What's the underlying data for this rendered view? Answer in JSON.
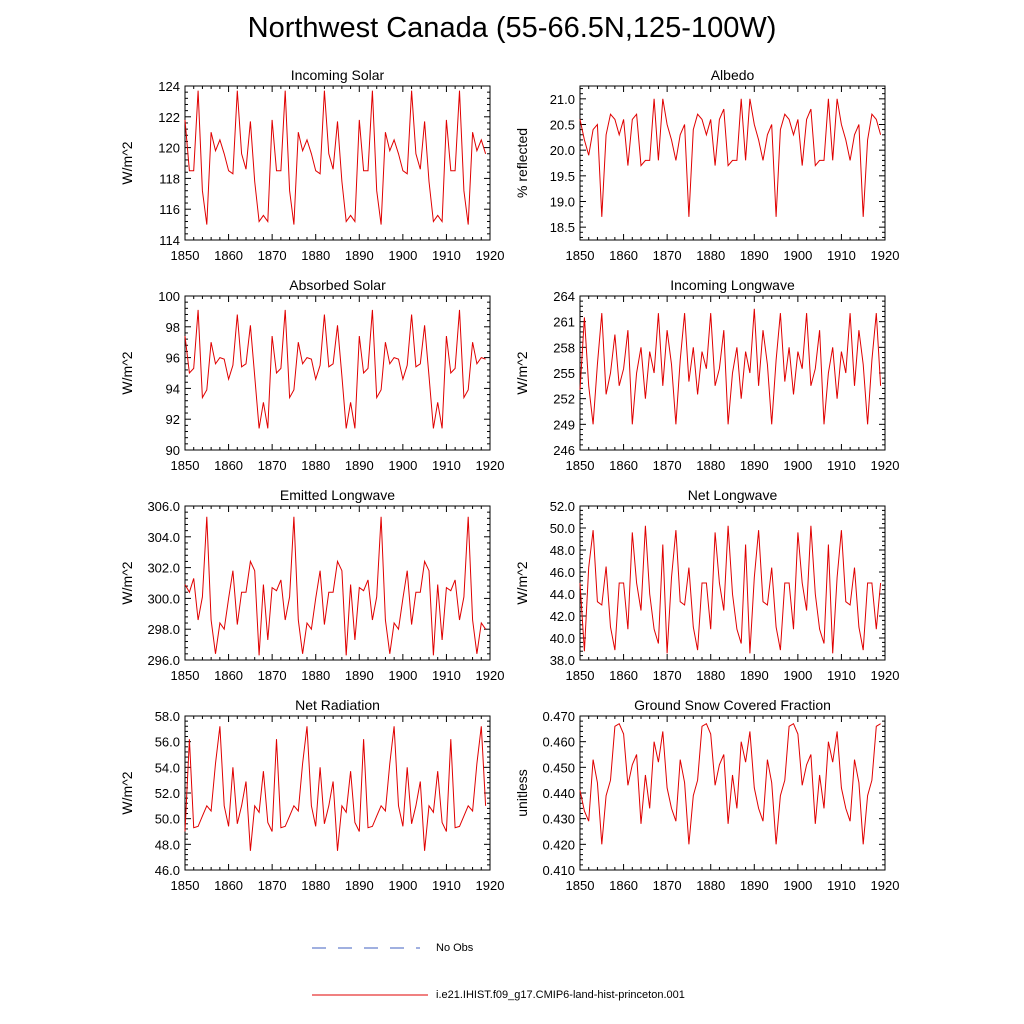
{
  "figure": {
    "title": "Northwest Canada (55-66.5N,125-100W)",
    "legend": [
      {
        "label": "No Obs",
        "color": "#4060c0",
        "style": "dashed"
      },
      {
        "label": "i.e21.IHIST.f09_g17.CMIP6-land-hist-princeton.001",
        "color": "#e00000",
        "style": "solid"
      }
    ]
  },
  "chart_data": [
    {
      "type": "line",
      "title": "Incoming Solar",
      "ylabel": "W/m^2",
      "xlim": [
        1850,
        1920
      ],
      "ylim": [
        114,
        124
      ],
      "xticks": [
        "1850",
        "1860",
        "1870",
        "1880",
        "1890",
        "1900",
        "1910",
        "1920"
      ],
      "yticks": [
        "114",
        "116",
        "118",
        "120",
        "122",
        "124"
      ],
      "x_start": 1850,
      "color": "#e00000",
      "values": [
        121.8,
        118.5,
        118.5,
        123.7,
        117.2,
        115.0,
        121.0,
        119.8,
        120.5,
        119.6,
        118.5,
        118.3,
        123.7,
        119.6,
        118.6,
        121.7,
        117.8,
        115.2,
        115.6,
        115.2,
        121.8,
        118.5,
        118.5,
        123.7,
        117.2,
        115.0,
        121.0,
        119.8,
        120.5,
        119.6,
        118.5,
        118.3,
        123.7,
        119.6,
        118.6,
        121.7,
        117.8,
        115.2,
        115.6,
        115.2,
        121.8,
        118.5,
        118.5,
        123.7,
        117.2,
        115.0,
        121.0,
        119.8,
        120.5,
        119.6,
        118.5,
        118.3,
        123.7,
        119.6,
        118.6,
        121.7,
        117.8,
        115.2,
        115.6,
        115.2,
        121.8,
        118.5,
        118.5,
        123.7,
        117.2,
        115.0,
        121.0,
        119.8,
        120.5,
        119.6
      ]
    },
    {
      "type": "line",
      "title": "Albedo",
      "ylabel": "% reflected",
      "xlim": [
        1850,
        1920
      ],
      "ylim": [
        18.25,
        21.25
      ],
      "xticks": [
        "1850",
        "1860",
        "1870",
        "1880",
        "1890",
        "1900",
        "1910",
        "1920"
      ],
      "yticks": [
        "18.5",
        "19.0",
        "19.5",
        "20.0",
        "20.5",
        "21.0"
      ],
      "x_start": 1850,
      "color": "#e00000",
      "values": [
        20.6,
        20.2,
        19.9,
        20.4,
        20.5,
        18.7,
        20.3,
        20.7,
        20.6,
        20.3,
        20.6,
        19.7,
        20.6,
        20.7,
        19.7,
        19.8,
        19.8,
        21.0,
        19.8,
        21.0,
        20.5,
        20.2,
        19.8,
        20.3,
        20.5,
        18.7,
        20.4,
        20.7,
        20.6,
        20.3,
        20.6,
        19.7,
        20.6,
        20.8,
        19.7,
        19.8,
        19.8,
        21.0,
        19.8,
        21.0,
        20.5,
        20.2,
        19.8,
        20.3,
        20.5,
        18.7,
        20.4,
        20.7,
        20.6,
        20.3,
        20.6,
        19.7,
        20.6,
        20.8,
        19.7,
        19.8,
        19.8,
        21.0,
        19.8,
        21.0,
        20.5,
        20.2,
        19.8,
        20.3,
        20.5,
        18.7,
        20.2,
        20.7,
        20.6,
        20.3
      ]
    },
    {
      "type": "line",
      "title": "Absorbed Solar",
      "ylabel": "W/m^2",
      "xlim": [
        1850,
        1920
      ],
      "ylim": [
        90,
        100
      ],
      "xticks": [
        "1850",
        "1860",
        "1870",
        "1880",
        "1890",
        "1900",
        "1910",
        "1920"
      ],
      "yticks": [
        "90",
        "92",
        "94",
        "96",
        "98",
        "100"
      ],
      "x_start": 1850,
      "color": "#e00000",
      "values": [
        97.4,
        95.0,
        95.3,
        99.1,
        93.4,
        93.9,
        97.0,
        95.6,
        96.0,
        95.9,
        94.6,
        95.5,
        98.8,
        95.4,
        95.6,
        98.1,
        94.8,
        91.4,
        93.1,
        91.4,
        97.4,
        95.0,
        95.3,
        99.1,
        93.4,
        93.9,
        97.0,
        95.6,
        96.0,
        95.9,
        94.6,
        95.5,
        98.8,
        95.4,
        95.6,
        98.1,
        94.8,
        91.4,
        93.1,
        91.4,
        97.4,
        95.0,
        95.3,
        99.1,
        93.4,
        93.9,
        97.0,
        95.6,
        96.0,
        95.9,
        94.6,
        95.5,
        98.8,
        95.4,
        95.6,
        98.1,
        94.8,
        91.4,
        93.1,
        91.4,
        97.4,
        95.0,
        95.3,
        99.1,
        93.4,
        93.9,
        97.0,
        95.6,
        96.0,
        95.9
      ]
    },
    {
      "type": "line",
      "title": "Incoming Longwave",
      "ylabel": "W/m^2",
      "xlim": [
        1850,
        1920
      ],
      "ylim": [
        246,
        264
      ],
      "xticks": [
        "1850",
        "1860",
        "1870",
        "1880",
        "1890",
        "1900",
        "1910",
        "1920"
      ],
      "yticks": [
        "246",
        "249",
        "252",
        "255",
        "258",
        "261",
        "264"
      ],
      "x_start": 1850,
      "color": "#e00000",
      "values": [
        253.0,
        261.5,
        253.5,
        249.0,
        256.0,
        262.0,
        252.5,
        255.0,
        259.5,
        253.5,
        255.5,
        260.0,
        249.0,
        255.0,
        258.0,
        252.0,
        257.5,
        255.0,
        262.0,
        253.5,
        260.0,
        256.0,
        249.0,
        256.5,
        262.0,
        254.0,
        258.0,
        252.5,
        257.5,
        255.5,
        262.0,
        253.5,
        255.5,
        260.0,
        249.0,
        255.0,
        258.0,
        252.0,
        257.5,
        255.0,
        262.5,
        253.5,
        260.0,
        256.0,
        249.0,
        256.5,
        262.0,
        254.0,
        258.0,
        252.5,
        257.5,
        255.5,
        262.0,
        253.5,
        255.5,
        260.0,
        249.0,
        255.0,
        258.0,
        252.0,
        257.5,
        255.0,
        262.0,
        253.5,
        260.0,
        256.0,
        249.0,
        256.5,
        262.0,
        253.5
      ]
    },
    {
      "type": "line",
      "title": "Emitted Longwave",
      "ylabel": "W/m^2",
      "xlim": [
        1850,
        1920
      ],
      "ylim": [
        296,
        306
      ],
      "xticks": [
        "1850",
        "1860",
        "1870",
        "1880",
        "1890",
        "1900",
        "1910",
        "1920"
      ],
      "yticks": [
        "296.0",
        "298.0",
        "300.0",
        "302.0",
        "304.0",
        "306.0"
      ],
      "x_start": 1850,
      "color": "#e00000",
      "values": [
        300.9,
        300.4,
        301.3,
        298.6,
        300.1,
        305.3,
        298.6,
        296.4,
        298.4,
        298.0,
        300.0,
        301.8,
        298.3,
        300.4,
        300.4,
        302.4,
        301.8,
        296.3,
        300.9,
        297.3,
        300.7,
        300.5,
        301.2,
        298.6,
        300.1,
        305.3,
        298.6,
        296.4,
        298.4,
        298.0,
        300.0,
        301.8,
        298.3,
        300.4,
        300.4,
        302.4,
        301.8,
        296.3,
        300.9,
        297.3,
        300.7,
        300.5,
        301.2,
        298.6,
        300.1,
        305.3,
        298.6,
        296.4,
        298.4,
        298.0,
        300.0,
        301.8,
        298.3,
        300.4,
        300.4,
        302.4,
        301.8,
        296.3,
        300.9,
        297.3,
        300.7,
        300.5,
        301.2,
        298.6,
        300.1,
        305.3,
        298.6,
        296.4,
        298.4,
        298.0
      ]
    },
    {
      "type": "line",
      "title": "Net Longwave",
      "ylabel": "W/m^2",
      "xlim": [
        1850,
        1920
      ],
      "ylim": [
        38,
        52
      ],
      "xticks": [
        "1850",
        "1860",
        "1870",
        "1880",
        "1890",
        "1900",
        "1910",
        "1920"
      ],
      "yticks": [
        "38.0",
        "40.0",
        "42.0",
        "44.0",
        "46.0",
        "48.0",
        "50.0",
        "52.0"
      ],
      "x_start": 1850,
      "color": "#e00000",
      "values": [
        45.0,
        38.8,
        46.4,
        49.8,
        43.3,
        43.0,
        46.5,
        41.0,
        38.9,
        45.0,
        45.0,
        40.8,
        49.6,
        45.0,
        42.5,
        50.2,
        44.0,
        40.8,
        39.5,
        48.5,
        38.6,
        45.5,
        49.8,
        43.3,
        43.0,
        46.4,
        41.0,
        38.9,
        45.0,
        45.0,
        40.8,
        49.6,
        45.0,
        42.5,
        50.2,
        44.0,
        40.8,
        39.5,
        48.5,
        38.6,
        45.5,
        49.8,
        43.3,
        43.0,
        46.4,
        41.0,
        38.9,
        45.0,
        45.0,
        40.8,
        49.6,
        45.0,
        42.5,
        50.2,
        44.0,
        40.8,
        39.5,
        48.5,
        38.6,
        45.5,
        49.8,
        43.3,
        43.0,
        46.4,
        41.0,
        38.9,
        45.0,
        45.0,
        40.8,
        45.0
      ]
    },
    {
      "type": "line",
      "title": "Net Radiation",
      "ylabel": "W/m^2",
      "xlim": [
        1850,
        1920
      ],
      "ylim": [
        46,
        58
      ],
      "xticks": [
        "1850",
        "1860",
        "1870",
        "1880",
        "1890",
        "1900",
        "1910",
        "1920"
      ],
      "yticks": [
        "46.0",
        "48.0",
        "50.0",
        "52.0",
        "54.0",
        "56.0",
        "58.0"
      ],
      "x_start": 1850,
      "color": "#e00000",
      "values": [
        49.0,
        56.2,
        49.3,
        49.4,
        50.2,
        51.0,
        50.6,
        54.3,
        57.2,
        51.0,
        49.4,
        54.0,
        49.6,
        51.0,
        52.9,
        47.5,
        51.0,
        50.5,
        53.7,
        49.7,
        49.0,
        56.2,
        49.3,
        49.4,
        50.2,
        51.0,
        50.6,
        54.3,
        57.2,
        51.0,
        49.4,
        54.0,
        49.6,
        51.0,
        52.9,
        47.5,
        51.0,
        50.5,
        53.7,
        49.7,
        49.0,
        56.2,
        49.3,
        49.4,
        50.2,
        51.0,
        50.6,
        54.3,
        57.2,
        51.0,
        49.4,
        54.0,
        49.6,
        51.0,
        52.9,
        47.5,
        51.0,
        50.5,
        53.7,
        49.7,
        49.0,
        56.2,
        49.3,
        49.4,
        50.2,
        51.0,
        50.6,
        54.3,
        57.2,
        51.0
      ]
    },
    {
      "type": "line",
      "title": "Ground Snow Covered Fraction",
      "ylabel": "unitless",
      "xlim": [
        1850,
        1920
      ],
      "ylim": [
        0.41,
        0.47
      ],
      "xticks": [
        "1850",
        "1860",
        "1870",
        "1880",
        "1890",
        "1900",
        "1910",
        "1920"
      ],
      "yticks": [
        "0.410",
        "0.420",
        "0.430",
        "0.440",
        "0.450",
        "0.460",
        "0.470"
      ],
      "x_start": 1850,
      "color": "#e00000",
      "values": [
        0.441,
        0.433,
        0.429,
        0.453,
        0.444,
        0.42,
        0.439,
        0.445,
        0.466,
        0.467,
        0.463,
        0.443,
        0.451,
        0.455,
        0.428,
        0.447,
        0.434,
        0.46,
        0.452,
        0.464,
        0.442,
        0.434,
        0.429,
        0.453,
        0.444,
        0.42,
        0.439,
        0.445,
        0.466,
        0.467,
        0.463,
        0.443,
        0.451,
        0.455,
        0.428,
        0.447,
        0.434,
        0.46,
        0.452,
        0.464,
        0.442,
        0.434,
        0.429,
        0.453,
        0.444,
        0.42,
        0.439,
        0.445,
        0.466,
        0.467,
        0.463,
        0.443,
        0.451,
        0.455,
        0.428,
        0.447,
        0.434,
        0.46,
        0.452,
        0.464,
        0.442,
        0.434,
        0.429,
        0.453,
        0.444,
        0.42,
        0.439,
        0.445,
        0.466,
        0.467
      ]
    }
  ]
}
